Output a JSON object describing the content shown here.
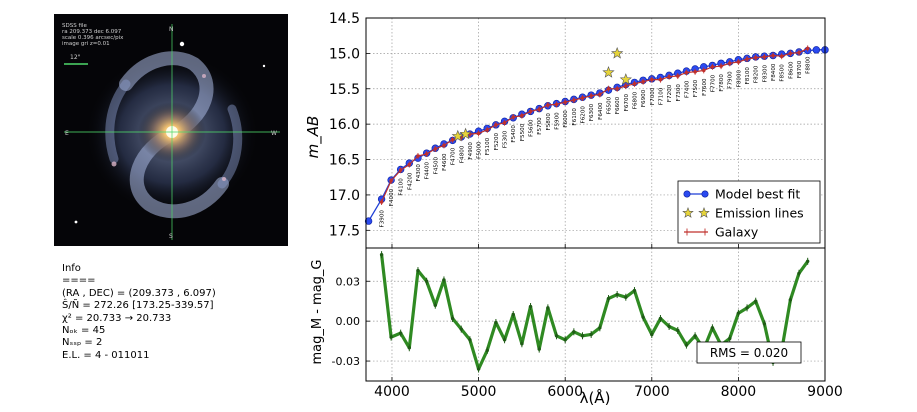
{
  "image_overlay": {
    "lines": [
      "SDSS  file",
      "ra  209.373  dec  6.097",
      "scale  0.396  arcsec/pix",
      "image  gri  z=0.01"
    ],
    "scale_label": "12\"",
    "compass": {
      "north": "N",
      "south": "S",
      "east": "E",
      "west": "W"
    }
  },
  "info": {
    "lines": [
      "Info",
      "====",
      "(RA , DEC) = (209.373 , 6.097)",
      "Ŝ/Ñ = 272.26 [173.25-339.57]",
      "χ² = 20.733 → 20.733",
      "Nₒₖ = 45",
      "Nₛₛₚ = 2",
      "E.L. = 4 - 011011"
    ]
  },
  "chart_data": [
    {
      "type": "line",
      "panel": "top",
      "ylabel": "m_AB",
      "ylim": [
        17.75,
        14.5
      ],
      "xlim": [
        3700,
        9000
      ],
      "yticks": [
        "14.5",
        "15.0",
        "15.5",
        "16.0",
        "16.5",
        "17.0",
        "17.5"
      ],
      "grid": true,
      "legend": {
        "placement": "bottom-right",
        "entries": [
          "Model best fit",
          "Emission lines",
          "Galaxy"
        ]
      },
      "filters": [
        "F3900",
        "F4000",
        "F4100",
        "F4200",
        "F4300",
        "F4400",
        "F4500",
        "F4600",
        "F4700",
        "F4800",
        "F4900",
        "F5000",
        "F5100",
        "F5200",
        "F5300",
        "F5400",
        "F5500",
        "F5600",
        "F5700",
        "F5800",
        "F5900",
        "F6000",
        "F6100",
        "F6200",
        "F6300",
        "F6400",
        "F6500",
        "F6600",
        "F6700",
        "F6800",
        "F6900",
        "F7000",
        "F7100",
        "F7200",
        "F7300",
        "F7400",
        "F7500",
        "F7600",
        "F7700",
        "F7800",
        "F7900",
        "F8000",
        "F8100",
        "F8200",
        "F8300",
        "F8400",
        "F8500",
        "F8600",
        "F8700",
        "F8800"
      ],
      "series": [
        {
          "name": "Model best fit",
          "x": [
            3730,
            3880,
            3990,
            4100,
            4200,
            4300,
            4400,
            4500,
            4600,
            4700,
            4800,
            4900,
            5000,
            5100,
            5200,
            5300,
            5400,
            5500,
            5600,
            5700,
            5800,
            5900,
            6000,
            6100,
            6200,
            6300,
            6400,
            6500,
            6600,
            6700,
            6800,
            6900,
            7000,
            7100,
            7200,
            7300,
            7400,
            7500,
            7600,
            7700,
            7800,
            7900,
            8000,
            8100,
            8200,
            8300,
            8400,
            8500,
            8600,
            8700,
            8800,
            8900,
            9000
          ],
          "y": [
            17.37,
            17.06,
            16.79,
            16.64,
            16.55,
            16.48,
            16.41,
            16.34,
            16.28,
            16.23,
            16.18,
            16.14,
            16.1,
            16.06,
            16.01,
            15.96,
            15.91,
            15.86,
            15.82,
            15.78,
            15.74,
            15.71,
            15.68,
            15.65,
            15.62,
            15.59,
            15.56,
            15.52,
            15.48,
            15.44,
            15.41,
            15.38,
            15.36,
            15.34,
            15.31,
            15.28,
            15.25,
            15.22,
            15.19,
            15.17,
            15.14,
            15.12,
            15.09,
            15.07,
            15.05,
            15.04,
            15.03,
            15.01,
            15.0,
            14.98,
            14.96,
            14.95,
            14.95
          ]
        },
        {
          "name": "Galaxy",
          "x": [
            3880,
            3990,
            4100,
            4200,
            4300,
            4400,
            4500,
            4600,
            4700,
            4800,
            4900,
            5000,
            5100,
            5200,
            5300,
            5400,
            5500,
            5600,
            5700,
            5800,
            5900,
            6000,
            6100,
            6200,
            6300,
            6400,
            6500,
            6600,
            6700,
            6800,
            6900,
            7000,
            7100,
            7200,
            7300,
            7400,
            7500,
            7600,
            7700,
            7800,
            7900,
            8000,
            8100,
            8200,
            8300,
            8400,
            8500,
            8600,
            8700,
            8800
          ],
          "y": [
            17.1,
            16.8,
            16.65,
            16.57,
            16.45,
            16.42,
            16.35,
            16.3,
            16.22,
            16.19,
            16.14,
            16.13,
            16.08,
            16.01,
            15.98,
            15.9,
            15.88,
            15.82,
            15.79,
            15.73,
            15.72,
            15.69,
            15.66,
            15.63,
            15.6,
            15.58,
            15.5,
            15.5,
            15.46,
            15.43,
            15.4,
            15.37,
            15.37,
            15.33,
            15.32,
            15.27,
            15.26,
            15.24,
            15.19,
            15.18,
            15.14,
            15.12,
            15.08,
            15.06,
            15.05,
            15.03,
            15.04,
            15.0,
            14.99,
            14.93
          ]
        },
        {
          "name": "Emission lines",
          "x": [
            4760,
            4850,
            6500,
            6600,
            6700
          ],
          "y": [
            16.17,
            16.14,
            15.27,
            15.0,
            15.37
          ]
        }
      ]
    },
    {
      "type": "line",
      "panel": "bottom",
      "xlabel": "λ(Å)",
      "ylabel": "mag_M - mag_G",
      "xlim": [
        3700,
        9000
      ],
      "ylim": [
        -0.045,
        0.055
      ],
      "xticks": [
        "4000",
        "5000",
        "6000",
        "7000",
        "8000",
        "9000"
      ],
      "yticks": [
        "0.03",
        "0.00",
        "-0.03"
      ],
      "grid": true,
      "annotation": "RMS = 0.020",
      "series": [
        {
          "name": "residual",
          "x": [
            3880,
            3990,
            4100,
            4200,
            4300,
            4400,
            4500,
            4600,
            4700,
            4800,
            4900,
            5000,
            5100,
            5200,
            5300,
            5400,
            5500,
            5600,
            5700,
            5800,
            5900,
            6000,
            6100,
            6200,
            6300,
            6400,
            6500,
            6600,
            6700,
            6800,
            6900,
            7000,
            7100,
            7200,
            7300,
            7400,
            7500,
            7600,
            7700,
            7800,
            7900,
            8000,
            8100,
            8200,
            8300,
            8400,
            8500,
            8600,
            8700,
            8800
          ],
          "y": [
            0.05,
            -0.012,
            -0.009,
            -0.02,
            0.038,
            0.03,
            0.012,
            0.031,
            0.002,
            -0.006,
            -0.014,
            -0.036,
            -0.022,
            -0.001,
            -0.014,
            0.005,
            -0.017,
            0.011,
            -0.021,
            0.01,
            -0.011,
            -0.014,
            -0.008,
            -0.011,
            -0.01,
            -0.005,
            0.017,
            0.02,
            0.018,
            0.023,
            0.003,
            -0.01,
            0.002,
            -0.004,
            -0.007,
            -0.018,
            -0.011,
            -0.021,
            -0.005,
            -0.018,
            -0.013,
            0.006,
            0.01,
            0.015,
            -0.002,
            -0.031,
            -0.022,
            0.016,
            0.036,
            0.045
          ]
        }
      ]
    }
  ]
}
